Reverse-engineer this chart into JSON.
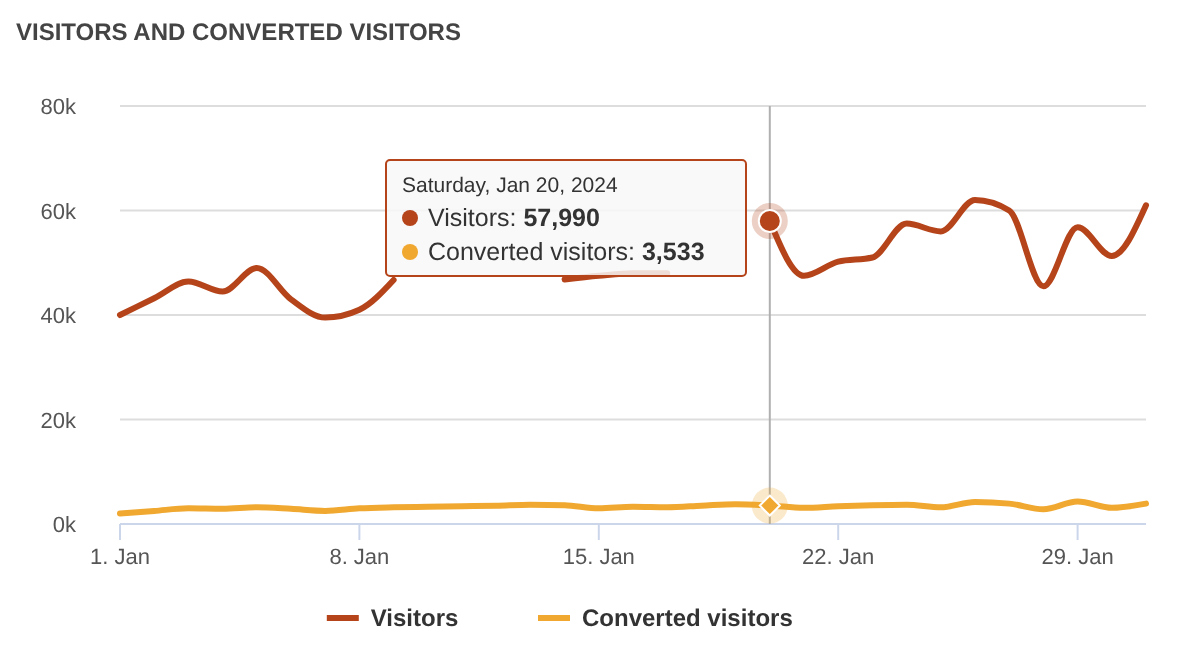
{
  "chart_data": {
    "type": "line",
    "title": "VISITORS AND CONVERTED VISITORS",
    "x": [
      "2024-01-01",
      "2024-01-02",
      "2024-01-03",
      "2024-01-04",
      "2024-01-05",
      "2024-01-06",
      "2024-01-07",
      "2024-01-08",
      "2024-01-09",
      "2024-01-10",
      "2024-01-11",
      "2024-01-12",
      "2024-01-13",
      "2024-01-14",
      "2024-01-15",
      "2024-01-16",
      "2024-01-17",
      "2024-01-18",
      "2024-01-19",
      "2024-01-20",
      "2024-01-21",
      "2024-01-22",
      "2024-01-23",
      "2024-01-24",
      "2024-01-25",
      "2024-01-26",
      "2024-01-27",
      "2024-01-28",
      "2024-01-29",
      "2024-01-30",
      "2024-01-31"
    ],
    "series": [
      {
        "name": "Visitors",
        "color": "#b5441b",
        "values": [
          40000,
          43200,
          46400,
          44500,
          49000,
          43000,
          39500,
          41000,
          46700,
          null,
          null,
          null,
          null,
          46800,
          47500,
          48000,
          48000,
          null,
          null,
          57990,
          47500,
          50200,
          51000,
          57500,
          56000,
          62000,
          60000,
          45500,
          56800,
          51300,
          61000
        ]
      },
      {
        "name": "Converted visitors",
        "color": "#f0a830",
        "values": [
          2000,
          2500,
          3000,
          2900,
          3200,
          2900,
          2500,
          3000,
          3200,
          3300,
          3400,
          3500,
          3700,
          3600,
          3000,
          3300,
          3200,
          3500,
          3800,
          3533,
          3100,
          3400,
          3600,
          3700,
          3200,
          4200,
          3900,
          2800,
          4300,
          3100,
          3900
        ]
      }
    ],
    "xlim": [
      "2024-01-01",
      "2024-01-31"
    ],
    "xticks": [
      {
        "value": "2024-01-01",
        "label": "1. Jan"
      },
      {
        "value": "2024-01-08",
        "label": "8. Jan"
      },
      {
        "value": "2024-01-15",
        "label": "15. Jan"
      },
      {
        "value": "2024-01-22",
        "label": "22. Jan"
      },
      {
        "value": "2024-01-29",
        "label": "29. Jan"
      }
    ],
    "ylim": [
      0,
      80000
    ],
    "yticks": [
      {
        "value": 0,
        "label": "0k"
      },
      {
        "value": 20000,
        "label": "20k"
      },
      {
        "value": 40000,
        "label": "40k"
      },
      {
        "value": 60000,
        "label": "60k"
      },
      {
        "value": 80000,
        "label": "80k"
      }
    ],
    "ref_lines": [
      {
        "axis": "x",
        "value": "2024-01-20",
        "color": "#b0b0b0"
      }
    ],
    "annotations": [
      "Saturday, Jan 20, 2024",
      "Visitors: 57,990",
      "Converted visitors: 3,533"
    ],
    "grid": "y",
    "legend": "bottom",
    "marker": "none",
    "line_style": "solid"
  }
}
